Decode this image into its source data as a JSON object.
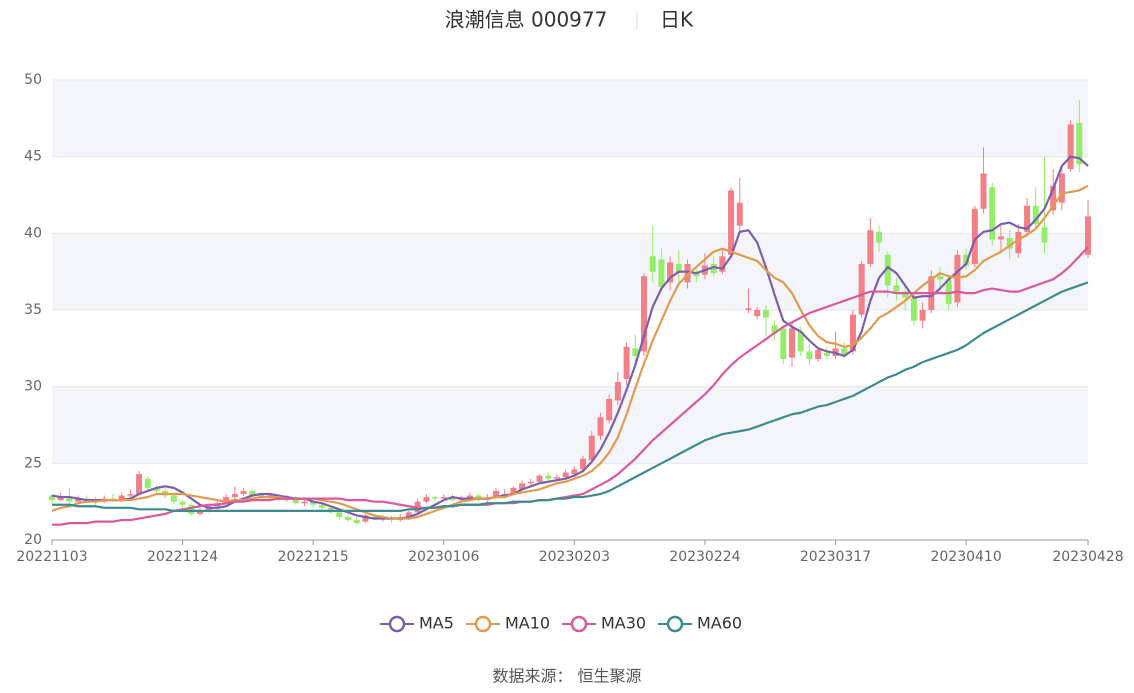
{
  "chart_data": {
    "type": "candlestick",
    "title": "浪潮信息 000977",
    "period": "日K",
    "source": "数据来源： 恒生聚源",
    "up_color": "#f47f86",
    "down_color": "#95ec69",
    "categories": [
      "20221103",
      null,
      null,
      null,
      null,
      null,
      null,
      null,
      null,
      null,
      null,
      null,
      null,
      null,
      null,
      "20221124",
      null,
      null,
      null,
      null,
      null,
      null,
      null,
      null,
      null,
      null,
      null,
      null,
      null,
      null,
      "20221215",
      null,
      null,
      null,
      null,
      null,
      null,
      null,
      null,
      null,
      null,
      null,
      null,
      null,
      null,
      "20230106",
      null,
      null,
      null,
      null,
      null,
      null,
      null,
      null,
      null,
      null,
      null,
      null,
      null,
      null,
      "20230203",
      null,
      null,
      null,
      null,
      null,
      null,
      null,
      null,
      null,
      null,
      null,
      null,
      null,
      null,
      "20230224",
      null,
      null,
      null,
      null,
      null,
      null,
      null,
      null,
      null,
      null,
      null,
      null,
      null,
      null,
      "20230317",
      null,
      null,
      null,
      null,
      null,
      null,
      null,
      null,
      null,
      null,
      null,
      null,
      null,
      null,
      "20230410",
      null,
      null,
      null,
      null,
      null,
      null,
      null,
      null,
      null,
      null,
      null,
      null,
      null,
      "20230428"
    ],
    "open": [
      22.9,
      22.6,
      22.8,
      22.5,
      22.7,
      22.6,
      22.5,
      22.7,
      22.6,
      22.9,
      23.0,
      24.0,
      23.4,
      23.2,
      22.9,
      22.5,
      22.3,
      21.7,
      21.9,
      22.2,
      22.4,
      22.8,
      23.0,
      23.2,
      23.0,
      22.8,
      22.9,
      22.6,
      22.8,
      22.4,
      22.5,
      22.3,
      22.1,
      21.8,
      21.5,
      21.3,
      21.2,
      21.5,
      21.4,
      21.5,
      21.3,
      21.4,
      21.8,
      22.5,
      22.8,
      22.7,
      22.8,
      22.6,
      22.7,
      22.9,
      22.6,
      22.8,
      22.9,
      23.0,
      23.3,
      23.7,
      23.8,
      24.2,
      24.0,
      24.1,
      24.3,
      24.6,
      25.2,
      26.8,
      27.8,
      29.1,
      30.5,
      32.5,
      32.3,
      38.5,
      38.3,
      36.8,
      38.0,
      36.8,
      37.5,
      37.3,
      38.0,
      37.5,
      38.6,
      40.5,
      35.0,
      34.6,
      35.0,
      34.0,
      33.8,
      31.9,
      33.6,
      32.3,
      31.8,
      32.2,
      32.0,
      32.5,
      32.3,
      34.7,
      38.0,
      40.1,
      38.6,
      36.6,
      36.2,
      35.8,
      34.3,
      35.0,
      37.2,
      37.0,
      35.5,
      38.6,
      38.0,
      41.6,
      43.0,
      39.6,
      39.7,
      38.7,
      40.1,
      41.8,
      40.4,
      41.5,
      42.0,
      44.2,
      47.2,
      38.6
    ],
    "close": [
      22.6,
      22.8,
      22.5,
      22.7,
      22.6,
      22.5,
      22.7,
      22.6,
      22.9,
      23.0,
      24.3,
      23.4,
      23.2,
      22.9,
      22.5,
      22.3,
      21.7,
      21.9,
      22.2,
      22.4,
      22.8,
      23.0,
      23.2,
      22.9,
      22.8,
      22.9,
      22.6,
      22.8,
      22.4,
      22.5,
      22.3,
      22.1,
      21.8,
      21.5,
      21.3,
      21.1,
      21.6,
      21.4,
      21.5,
      21.3,
      21.5,
      21.8,
      22.5,
      22.8,
      22.7,
      22.8,
      22.6,
      22.7,
      22.9,
      22.6,
      22.8,
      23.2,
      23.0,
      23.4,
      23.7,
      23.8,
      24.2,
      24.0,
      24.1,
      24.4,
      24.6,
      25.3,
      26.8,
      28.0,
      29.2,
      30.3,
      32.6,
      32.0,
      37.2,
      37.5,
      36.5,
      38.1,
      37.4,
      38.0,
      37.2,
      37.9,
      37.4,
      38.5,
      42.8,
      42.0,
      35.1,
      35.0,
      34.5,
      33.5,
      31.8,
      33.8,
      32.3,
      31.8,
      32.4,
      32.0,
      32.5,
      32.1,
      34.7,
      38.0,
      40.2,
      39.4,
      36.6,
      36.2,
      35.8,
      34.3,
      35.0,
      37.2,
      37.0,
      35.4,
      38.6,
      37.9,
      41.6,
      43.9,
      39.6,
      39.8,
      39.0,
      40.1,
      41.8,
      40.6,
      39.4,
      43.1,
      43.9,
      47.1,
      44.5,
      41.1
    ],
    "low": [
      22.4,
      22.5,
      22.3,
      22.4,
      22.4,
      22.3,
      22.4,
      22.5,
      22.5,
      22.8,
      22.9,
      23.2,
      23.0,
      22.7,
      22.3,
      22.1,
      21.6,
      21.6,
      21.8,
      22.0,
      22.3,
      22.6,
      22.9,
      22.8,
      22.7,
      22.6,
      22.5,
      22.5,
      22.3,
      22.2,
      22.1,
      21.9,
      21.7,
      21.3,
      21.2,
      21.0,
      21.1,
      21.3,
      21.2,
      21.1,
      21.2,
      21.3,
      21.7,
      22.4,
      22.5,
      22.6,
      22.5,
      22.5,
      22.6,
      22.5,
      22.5,
      22.7,
      22.8,
      22.9,
      23.2,
      23.5,
      23.7,
      23.8,
      23.9,
      24.0,
      24.1,
      24.4,
      25.0,
      26.5,
      27.6,
      28.8,
      30.1,
      31.6,
      32.0,
      36.8,
      36.2,
      36.3,
      36.8,
      36.4,
      36.8,
      37.0,
      37.2,
      37.3,
      38.4,
      40.0,
      34.8,
      34.4,
      33.3,
      33.0,
      31.5,
      31.3,
      32.0,
      31.4,
      31.6,
      31.8,
      31.8,
      31.9,
      32.1,
      34.5,
      37.8,
      38.8,
      35.8,
      35.6,
      35.0,
      34.0,
      33.8,
      34.8,
      36.2,
      35.0,
      35.2,
      37.6,
      37.8,
      41.3,
      39.2,
      38.7,
      38.3,
      38.4,
      39.8,
      40.2,
      38.7,
      41.2,
      41.5,
      44.0,
      44.0,
      38.4
    ],
    "high": [
      23.0,
      23.1,
      23.4,
      22.9,
      22.9,
      22.8,
      22.9,
      23.0,
      23.1,
      23.3,
      24.5,
      24.2,
      23.6,
      23.4,
      23.0,
      22.6,
      22.4,
      22.1,
      22.3,
      22.6,
      23.0,
      23.5,
      23.4,
      23.3,
      23.1,
      23.0,
      23.0,
      22.9,
      22.9,
      22.7,
      22.6,
      22.4,
      22.2,
      21.9,
      21.6,
      21.5,
      21.7,
      21.7,
      21.6,
      21.6,
      21.7,
      21.9,
      22.7,
      23.0,
      22.9,
      23.0,
      23.0,
      22.9,
      23.1,
      23.0,
      23.0,
      23.4,
      23.3,
      23.5,
      23.9,
      24.0,
      24.3,
      24.4,
      24.3,
      24.6,
      24.8,
      25.5,
      27.1,
      28.3,
      29.5,
      31.0,
      32.9,
      33.4,
      37.4,
      40.5,
      39.0,
      38.5,
      38.9,
      38.3,
      37.9,
      38.7,
      38.5,
      38.9,
      43.0,
      43.6,
      36.4,
      35.2,
      35.3,
      34.3,
      34.0,
      34.2,
      33.9,
      32.8,
      32.6,
      32.6,
      33.6,
      32.9,
      35.0,
      38.2,
      41.0,
      40.5,
      38.8,
      37.1,
      36.6,
      36.0,
      35.5,
      37.6,
      37.8,
      37.3,
      38.9,
      39.0,
      41.8,
      45.6,
      43.3,
      40.5,
      40.2,
      40.6,
      42.3,
      43.0,
      45.0,
      44.2,
      44.5,
      47.4,
      48.7,
      42.2
    ],
    "series": [
      {
        "name": "MA5",
        "color": "#7b5ead",
        "values": [
          22.9,
          22.8,
          22.8,
          22.7,
          22.6,
          22.6,
          22.6,
          22.6,
          22.6,
          22.7,
          23.0,
          23.2,
          23.4,
          23.5,
          23.4,
          23.1,
          22.7,
          22.3,
          22.1,
          22.1,
          22.2,
          22.5,
          22.7,
          22.9,
          23.0,
          23.0,
          22.9,
          22.8,
          22.7,
          22.7,
          22.5,
          22.4,
          22.2,
          22.0,
          21.8,
          21.6,
          21.5,
          21.4,
          21.4,
          21.4,
          21.4,
          21.5,
          21.7,
          22.0,
          22.3,
          22.6,
          22.8,
          22.7,
          22.7,
          22.7,
          22.7,
          22.8,
          22.9,
          23.0,
          23.3,
          23.5,
          23.7,
          23.8,
          23.9,
          24.0,
          24.2,
          24.5,
          25.1,
          25.9,
          27.0,
          28.3,
          29.8,
          31.4,
          33.3,
          35.2,
          36.4,
          37.1,
          37.5,
          37.5,
          37.4,
          37.6,
          37.8,
          37.7,
          38.5,
          40.1,
          40.2,
          39.4,
          37.8,
          36.0,
          34.3,
          33.9,
          33.6,
          33.0,
          32.5,
          32.3,
          32.2,
          32.0,
          32.4,
          33.6,
          35.6,
          37.1,
          37.8,
          37.4,
          36.6,
          35.8,
          35.9,
          35.9,
          36.4,
          37.0,
          37.5,
          38.0,
          39.6,
          40.1,
          40.2,
          40.6,
          40.7,
          40.4,
          40.3,
          40.9,
          41.6,
          42.9,
          44.4,
          45.0,
          44.9,
          44.4
        ]
      },
      {
        "name": "MA10",
        "color": "#e39a4f",
        "values": [
          21.9,
          22.1,
          22.2,
          22.4,
          22.5,
          22.5,
          22.6,
          22.6,
          22.6,
          22.6,
          22.7,
          22.8,
          23.0,
          23.0,
          23.0,
          23.0,
          22.9,
          22.8,
          22.7,
          22.6,
          22.5,
          22.6,
          22.6,
          22.7,
          22.8,
          22.8,
          22.8,
          22.7,
          22.7,
          22.7,
          22.7,
          22.6,
          22.5,
          22.4,
          22.2,
          22.0,
          21.8,
          21.6,
          21.5,
          21.4,
          21.4,
          21.4,
          21.5,
          21.7,
          21.9,
          22.1,
          22.3,
          22.5,
          22.6,
          22.7,
          22.7,
          22.8,
          22.8,
          23.0,
          23.1,
          23.2,
          23.3,
          23.5,
          23.7,
          23.8,
          24.0,
          24.2,
          24.5,
          25.0,
          25.7,
          26.7,
          28.2,
          29.9,
          31.5,
          33.0,
          34.3,
          35.6,
          36.7,
          37.3,
          37.8,
          38.3,
          38.8,
          39.0,
          38.8,
          38.6,
          38.4,
          38.2,
          37.6,
          37.1,
          36.8,
          36.1,
          35.0,
          34.0,
          33.3,
          32.9,
          32.8,
          32.6,
          32.7,
          33.2,
          33.8,
          34.5,
          34.8,
          35.2,
          35.6,
          36.1,
          36.6,
          37.0,
          37.4,
          37.2,
          37.1,
          37.2,
          37.6,
          38.2,
          38.5,
          38.8,
          39.2,
          39.6,
          39.9,
          40.3,
          41.0,
          41.8,
          42.6,
          42.7,
          42.8,
          43.1
        ]
      },
      {
        "name": "MA30",
        "color": "#d9599e",
        "values": [
          21.0,
          21.0,
          21.1,
          21.1,
          21.1,
          21.2,
          21.2,
          21.2,
          21.3,
          21.3,
          21.4,
          21.5,
          21.6,
          21.7,
          21.9,
          22.0,
          22.1,
          22.2,
          22.3,
          22.3,
          22.4,
          22.5,
          22.5,
          22.6,
          22.6,
          22.6,
          22.7,
          22.7,
          22.7,
          22.7,
          22.7,
          22.7,
          22.7,
          22.7,
          22.6,
          22.6,
          22.6,
          22.5,
          22.5,
          22.4,
          22.3,
          22.2,
          22.1,
          22.1,
          22.1,
          22.2,
          22.2,
          22.3,
          22.3,
          22.3,
          22.3,
          22.4,
          22.4,
          22.4,
          22.5,
          22.5,
          22.6,
          22.6,
          22.7,
          22.8,
          22.9,
          23.0,
          23.3,
          23.6,
          23.9,
          24.3,
          24.8,
          25.3,
          25.9,
          26.5,
          27.0,
          27.5,
          28.0,
          28.5,
          29.0,
          29.5,
          30.1,
          30.8,
          31.4,
          31.9,
          32.3,
          32.7,
          33.1,
          33.5,
          33.9,
          34.2,
          34.5,
          34.8,
          35.0,
          35.2,
          35.4,
          35.6,
          35.8,
          36.0,
          36.2,
          36.2,
          36.2,
          36.1,
          36.1,
          36.1,
          36.1,
          36.1,
          36.1,
          36.1,
          36.2,
          36.1,
          36.1,
          36.3,
          36.4,
          36.3,
          36.2,
          36.2,
          36.4,
          36.6,
          36.8,
          37.0,
          37.4,
          37.9,
          38.5,
          39.1
        ]
      },
      {
        "name": "MA60",
        "color": "#3c8b8e",
        "values": [
          22.3,
          22.3,
          22.3,
          22.2,
          22.2,
          22.2,
          22.1,
          22.1,
          22.1,
          22.1,
          22.0,
          22.0,
          22.0,
          22.0,
          21.9,
          21.9,
          21.9,
          21.9,
          21.9,
          21.9,
          21.9,
          21.9,
          21.9,
          21.9,
          21.9,
          21.9,
          21.9,
          21.9,
          21.9,
          21.9,
          21.9,
          21.9,
          21.9,
          21.9,
          21.9,
          21.9,
          21.9,
          21.9,
          21.9,
          21.9,
          21.9,
          22.0,
          22.0,
          22.1,
          22.1,
          22.2,
          22.2,
          22.3,
          22.3,
          22.3,
          22.4,
          22.4,
          22.4,
          22.5,
          22.5,
          22.5,
          22.6,
          22.6,
          22.7,
          22.7,
          22.8,
          22.8,
          22.9,
          23.0,
          23.2,
          23.5,
          23.8,
          24.1,
          24.4,
          24.7,
          25.0,
          25.3,
          25.6,
          25.9,
          26.2,
          26.5,
          26.7,
          26.9,
          27.0,
          27.1,
          27.2,
          27.4,
          27.6,
          27.8,
          28.0,
          28.2,
          28.3,
          28.5,
          28.7,
          28.8,
          29.0,
          29.2,
          29.4,
          29.7,
          30.0,
          30.3,
          30.6,
          30.8,
          31.1,
          31.3,
          31.6,
          31.8,
          32.0,
          32.2,
          32.4,
          32.7,
          33.1,
          33.5,
          33.8,
          34.1,
          34.4,
          34.7,
          35.0,
          35.3,
          35.6,
          35.9,
          36.2,
          36.4,
          36.6,
          36.8
        ]
      }
    ],
    "ylim": [
      20,
      50
    ],
    "yticks": [
      20,
      25,
      30,
      35,
      40,
      45,
      50
    ],
    "grid": true
  }
}
